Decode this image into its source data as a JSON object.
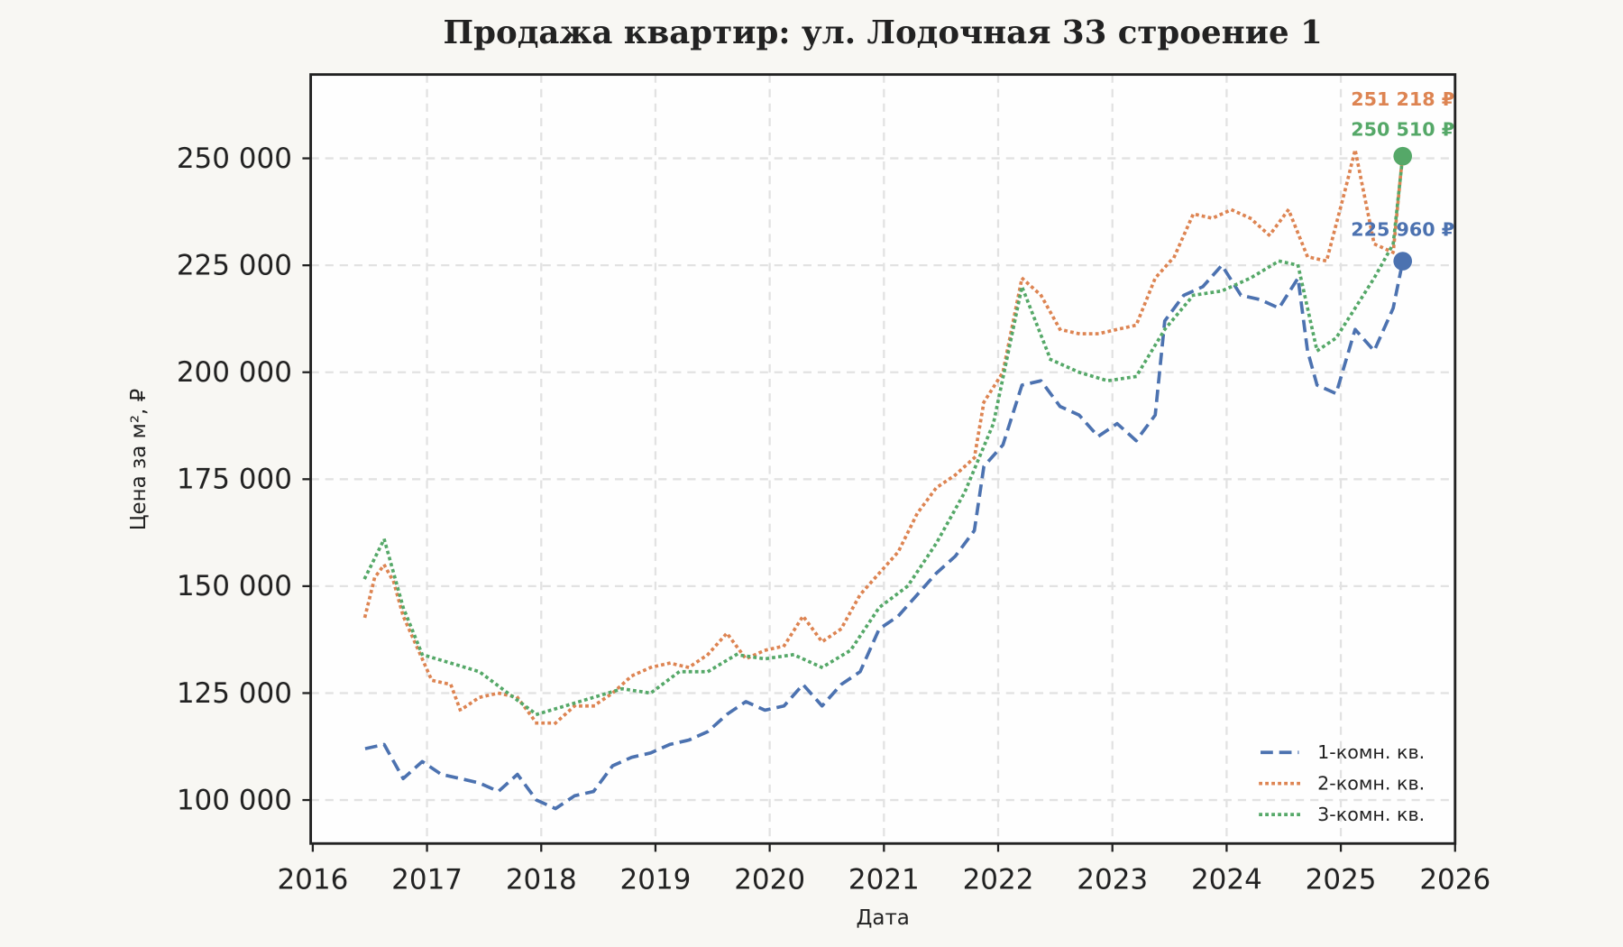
{
  "chart_data": {
    "type": "line",
    "title": "Продажа квартир: ул. Лодочная 33 строение 1",
    "xlabel": "Дата",
    "ylabel": "Цена за м², ₽",
    "xlim": [
      2016,
      2026
    ],
    "ylim": [
      90000,
      268000
    ],
    "x_ticks": [
      "2016",
      "2017",
      "2018",
      "2019",
      "2020",
      "2021",
      "2022",
      "2023",
      "2024",
      "2025",
      "2026"
    ],
    "y_ticks": [
      100000,
      125000,
      150000,
      175000,
      200000,
      225000,
      250000
    ],
    "y_tick_labels": [
      "100 000",
      "125 000",
      "150 000",
      "175 000",
      "200 000",
      "225 000",
      "250 000"
    ],
    "grid": true,
    "legend_position": "bottom-right",
    "series": [
      {
        "name": "1-комн. кв.",
        "color": "#4c72b0",
        "style": "dashed",
        "x": [
          "2016-06",
          "2016-08",
          "2016-10",
          "2016-12",
          "2017-02",
          "2017-04",
          "2017-06",
          "2017-08",
          "2017-10",
          "2017-12",
          "2018-02",
          "2018-04",
          "2018-06",
          "2018-08",
          "2018-10",
          "2018-12",
          "2019-02",
          "2019-04",
          "2019-06",
          "2019-08",
          "2019-10",
          "2019-12",
          "2020-02",
          "2020-04",
          "2020-06",
          "2020-08",
          "2020-10",
          "2020-12",
          "2021-02",
          "2021-04",
          "2021-06",
          "2021-08",
          "2021-10",
          "2021-11",
          "2022-01",
          "2022-03",
          "2022-05",
          "2022-07",
          "2022-09",
          "2022-11",
          "2023-01",
          "2023-03",
          "2023-05",
          "2023-06",
          "2023-08",
          "2023-10",
          "2023-12",
          "2024-02",
          "2024-04",
          "2024-06",
          "2024-08",
          "2024-09",
          "2024-10",
          "2024-12",
          "2025-02",
          "2025-04",
          "2025-06",
          "2025-07"
        ],
        "y": [
          112000,
          113000,
          105000,
          109000,
          106000,
          105000,
          104000,
          102000,
          106000,
          100000,
          98000,
          101000,
          102000,
          108000,
          110000,
          111000,
          113000,
          114000,
          116000,
          120000,
          123000,
          121000,
          122000,
          127000,
          122000,
          127000,
          130000,
          140000,
          143000,
          148000,
          153000,
          157000,
          163000,
          178000,
          183000,
          197000,
          198000,
          192000,
          190000,
          185000,
          188000,
          184000,
          190000,
          212000,
          218000,
          220000,
          225000,
          218000,
          217000,
          215000,
          222000,
          205000,
          197000,
          195000,
          210000,
          205000,
          215000,
          225960
        ],
        "last_label": "225 960 ₽"
      },
      {
        "name": "2-комн. кв.",
        "color": "#dd8452",
        "style": "dotted",
        "x": [
          "2016-06",
          "2016-07",
          "2016-08",
          "2016-09",
          "2016-10",
          "2016-12",
          "2017-01",
          "2017-03",
          "2017-04",
          "2017-06",
          "2017-08",
          "2017-10",
          "2017-12",
          "2018-02",
          "2018-04",
          "2018-06",
          "2018-08",
          "2018-10",
          "2018-12",
          "2019-02",
          "2019-04",
          "2019-06",
          "2019-08",
          "2019-10",
          "2019-12",
          "2020-02",
          "2020-04",
          "2020-06",
          "2020-08",
          "2020-10",
          "2020-12",
          "2021-02",
          "2021-04",
          "2021-06",
          "2021-08",
          "2021-10",
          "2021-11",
          "2022-01",
          "2022-03",
          "2022-05",
          "2022-07",
          "2022-09",
          "2022-11",
          "2023-01",
          "2023-03",
          "2023-05",
          "2023-07",
          "2023-09",
          "2023-11",
          "2024-01",
          "2024-03",
          "2024-05",
          "2024-07",
          "2024-09",
          "2024-11",
          "2025-01",
          "2025-02",
          "2025-04",
          "2025-06",
          "2025-07"
        ],
        "y": [
          143000,
          152000,
          155000,
          151000,
          143000,
          133000,
          128000,
          127000,
          121000,
          124000,
          125000,
          124000,
          118000,
          118000,
          122000,
          122000,
          125000,
          129000,
          131000,
          132000,
          131000,
          134000,
          139000,
          133000,
          135000,
          136000,
          143000,
          137000,
          140000,
          148000,
          153000,
          158000,
          167000,
          173000,
          176000,
          180000,
          193000,
          200000,
          222000,
          218000,
          210000,
          209000,
          209000,
          210000,
          211000,
          222000,
          227000,
          237000,
          236000,
          238000,
          236000,
          232000,
          238000,
          227000,
          226000,
          243000,
          252000,
          230000,
          228000,
          251218
        ],
        "last_label": "251 218 ₽"
      },
      {
        "name": "3-комн. кв.",
        "color": "#55a868",
        "style": "dotted",
        "x": [
          "2016-06",
          "2016-08",
          "2016-10",
          "2016-12",
          "2017-03",
          "2017-06",
          "2017-09",
          "2017-12",
          "2018-03",
          "2018-06",
          "2018-09",
          "2018-12",
          "2019-03",
          "2019-06",
          "2019-09",
          "2019-12",
          "2020-03",
          "2020-06",
          "2020-09",
          "2020-12",
          "2021-03",
          "2021-06",
          "2021-09",
          "2021-12",
          "2022-03",
          "2022-06",
          "2022-09",
          "2022-12",
          "2023-03",
          "2023-06",
          "2023-09",
          "2023-12",
          "2024-03",
          "2024-06",
          "2024-08",
          "2024-10",
          "2024-12",
          "2025-02",
          "2025-04",
          "2025-06",
          "2025-07"
        ],
        "y": [
          152000,
          161000,
          145000,
          134000,
          132000,
          130000,
          125000,
          120000,
          122000,
          124000,
          126000,
          125000,
          130000,
          130000,
          134000,
          133000,
          134000,
          131000,
          135000,
          145000,
          150000,
          160000,
          172000,
          188000,
          220000,
          203000,
          200000,
          198000,
          199000,
          210000,
          218000,
          219000,
          222000,
          226000,
          225000,
          205000,
          208000,
          215000,
          222000,
          230000,
          250510
        ],
        "last_label": "250 510 ₽"
      }
    ]
  }
}
